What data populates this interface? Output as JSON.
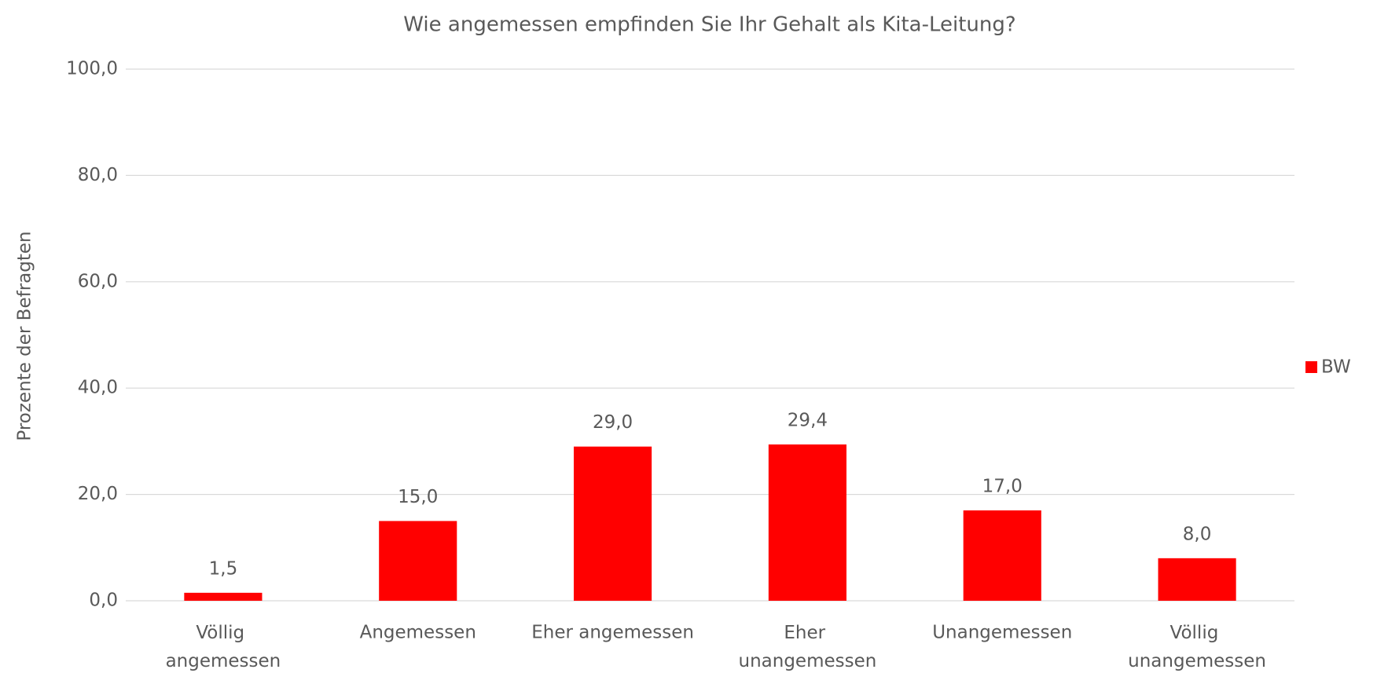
{
  "chart_data": {
    "type": "bar",
    "title": "Wie angemessen empfinden Sie Ihr Gehalt als Kita-Leitung?",
    "y_label": "Prozente der Befragten",
    "categories": [
      "Völlig angemessen",
      "Angemessen",
      "Eher angemessen",
      "Eher unangemessen",
      "Unangemessen",
      "Völlig unangemessen"
    ],
    "series": [
      {
        "name": "BW",
        "color": "#ff0000",
        "values": [
          1.5,
          15.0,
          29.0,
          29.4,
          17.0,
          8.0
        ],
        "value_labels": [
          "1,5",
          "15,0",
          "29,0",
          "29,4",
          "17,0",
          "8,0"
        ]
      }
    ],
    "ylim": [
      0,
      100
    ],
    "yticks": [
      {
        "value": 0,
        "label": "0,0"
      },
      {
        "value": 20,
        "label": "20,0"
      },
      {
        "value": 40,
        "label": "40,0"
      },
      {
        "value": 60,
        "label": "60,0"
      },
      {
        "value": 80,
        "label": "80,0"
      },
      {
        "value": 100,
        "label": "100,0"
      }
    ],
    "grid": true,
    "legend": "right"
  }
}
